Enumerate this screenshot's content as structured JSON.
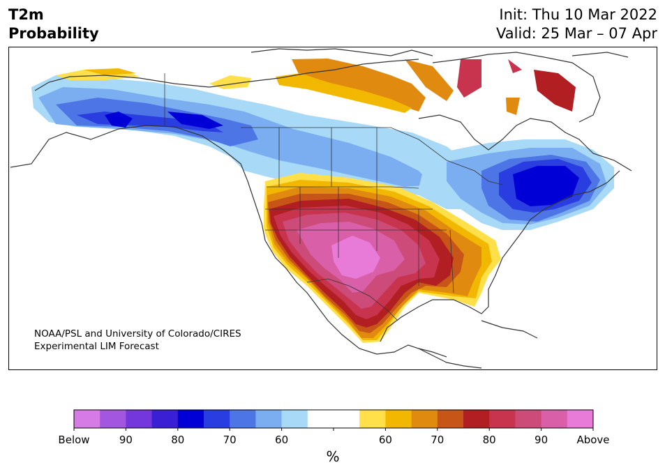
{
  "header": {
    "variable": "T2m",
    "subtitle": "Probability",
    "init": "Init: Thu 10 Mar 2022",
    "valid": "Valid: 25 Mar – 07 Apr"
  },
  "credit": {
    "line1": "NOAA/PSL and University of Colorado/CIRES",
    "line2": "Experimental LIM Forecast"
  },
  "colorbar": {
    "units": "%",
    "tick_labels": [
      "Below",
      "90",
      "80",
      "70",
      "60",
      "60",
      "70",
      "80",
      "90",
      "Above"
    ],
    "colors": [
      "#d67ae6",
      "#a357e0",
      "#7437dc",
      "#3b1fd4",
      "#0000d6",
      "#2a3de0",
      "#4e75e6",
      "#7baef0",
      "#a8daf8",
      "#ffffff",
      "#ffffff",
      "#ffe04a",
      "#f2b800",
      "#e08a10",
      "#c85518",
      "#b21f22",
      "#c8334e",
      "#cc4b78",
      "#d85fa8",
      "#e87ad8"
    ]
  },
  "map": {
    "type": "probability forecast map",
    "region": "North America"
  }
}
